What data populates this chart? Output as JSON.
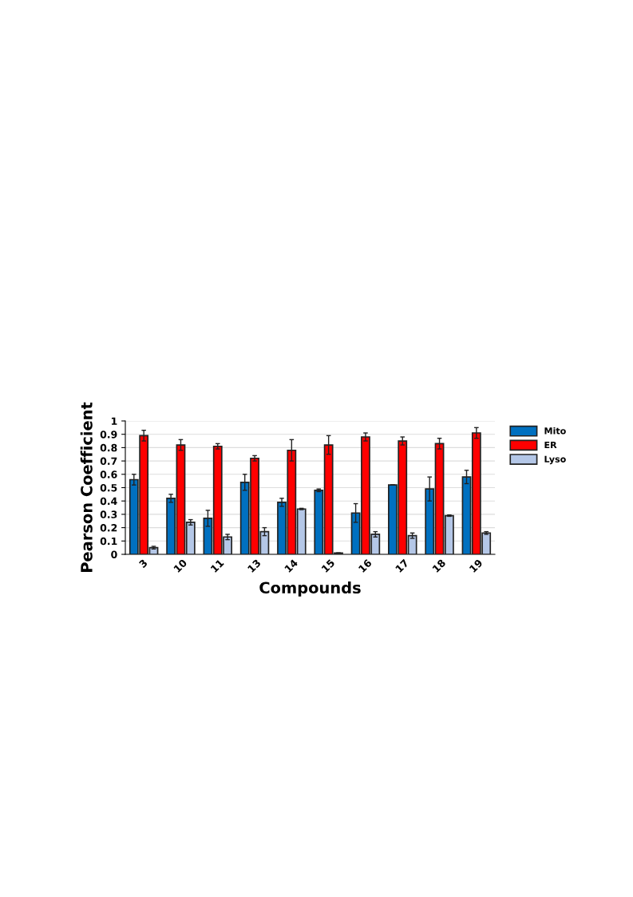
{
  "chart_data": {
    "type": "bar",
    "xlabel": "Compounds",
    "ylabel": "Pearson Coefficient",
    "categories": [
      "3",
      "10",
      "11",
      "13",
      "14",
      "15",
      "16",
      "17",
      "18",
      "19"
    ],
    "series": [
      {
        "name": "Mito",
        "color": "#0070c0",
        "values": [
          0.56,
          0.42,
          0.27,
          0.54,
          0.39,
          0.48,
          0.31,
          0.52,
          0.49,
          0.58
        ],
        "errors": [
          0.04,
          0.03,
          0.06,
          0.06,
          0.03,
          0.01,
          0.07,
          null,
          0.09,
          0.05
        ]
      },
      {
        "name": "ER",
        "color": "#ff0000",
        "values": [
          0.89,
          0.82,
          0.81,
          0.72,
          0.78,
          0.82,
          0.88,
          0.85,
          0.83,
          0.91
        ],
        "errors": [
          0.04,
          0.04,
          0.02,
          0.02,
          0.08,
          0.07,
          0.03,
          0.03,
          0.04,
          0.04
        ]
      },
      {
        "name": "Lyso",
        "color": "#b4c7e7",
        "values": [
          0.05,
          0.24,
          0.13,
          0.17,
          0.34,
          0.01,
          0.15,
          0.14,
          0.29,
          0.16
        ],
        "errors": [
          0.01,
          0.02,
          0.02,
          0.03,
          0.005,
          null,
          0.02,
          0.02,
          0.005,
          0.01
        ]
      }
    ],
    "ylim": [
      0,
      1
    ],
    "yticks": [
      0,
      0.1,
      0.2,
      0.3,
      0.4,
      0.5,
      0.6,
      0.7,
      0.8,
      0.9,
      1
    ],
    "grid": "y",
    "legend": "top right"
  }
}
